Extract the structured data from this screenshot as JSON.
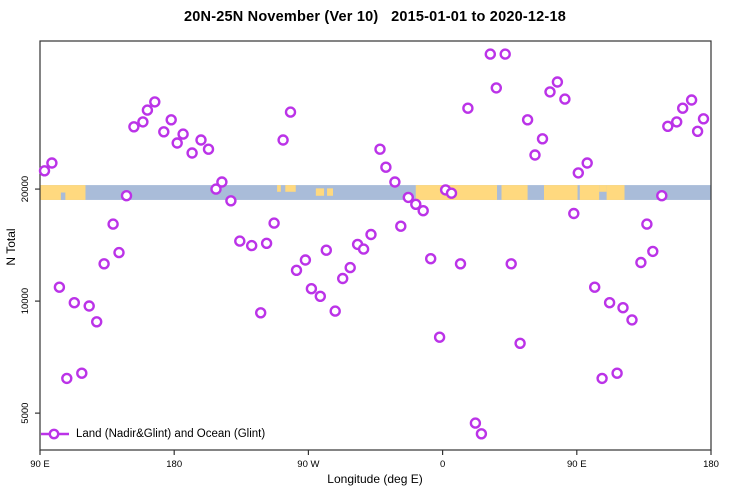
{
  "title": "20N-25N November (Ver 10)   2015-01-01 to 2020-12-18",
  "colors": {
    "marker": "#BB33E8",
    "marker_fill": "#ffffff",
    "land": "#FFD97F",
    "ocean": "#A9BCD9",
    "axis": "#333333",
    "text": "#000000"
  },
  "chart_data": {
    "type": "scatter",
    "title": "20N-25N November (Ver 10)   2015-01-01 to 2020-12-18",
    "xlabel": "Longitude (deg E)",
    "ylabel": "N Total",
    "grid": false,
    "legend": {
      "label": "Land (Nadir&Glint) and Ocean (Glint)",
      "position": "bottom-left",
      "marker": "open-circle-on-line"
    },
    "x_axis": {
      "note": "longitude in deg E, continuing eastward past 180 (wraps around globe)",
      "min": 90,
      "max": 540,
      "ticks": [
        {
          "value": 90,
          "label": "90 E"
        },
        {
          "value": 180,
          "label": "180"
        },
        {
          "value": 270,
          "label": "90 W"
        },
        {
          "value": 360,
          "label": "0"
        },
        {
          "value": 450,
          "label": "90 E"
        },
        {
          "value": 540,
          "label": "180"
        }
      ]
    },
    "y_axis": {
      "scale": "log10",
      "min": 3980,
      "max": 50000,
      "ticks": [
        {
          "value": 20000,
          "label": "20000"
        },
        {
          "value": 10000,
          "label": "10000"
        },
        {
          "value": 5000,
          "label": "5000"
        }
      ]
    },
    "map_strip": {
      "note": "land/ocean strip for the 20N-25N latitude band drawn across the plot near N=20000",
      "value_top": 20500,
      "value_bottom": 18700,
      "land_segments": [
        {
          "from": 90,
          "to": 120.5,
          "cover": "full"
        },
        {
          "from": 249,
          "to": 251.5,
          "cover": "upper"
        },
        {
          "from": 254.5,
          "to": 261.5,
          "cover": "upper"
        },
        {
          "from": 275,
          "to": 280.5,
          "cover": "mid"
        },
        {
          "from": 282.5,
          "to": 286.5,
          "cover": "mid"
        },
        {
          "from": 342,
          "to": 396.5,
          "cover": "full"
        },
        {
          "from": 399.5,
          "to": 417,
          "cover": "full"
        },
        {
          "from": 428,
          "to": 450.5,
          "cover": "full"
        },
        {
          "from": 452,
          "to": 465,
          "cover": "full"
        },
        {
          "from": 465,
          "to": 470,
          "cover": "upper"
        },
        {
          "from": 470,
          "to": 482,
          "cover": "full"
        }
      ],
      "ocean_notches": [
        {
          "from": 104,
          "to": 107,
          "cover": "lower"
        }
      ]
    },
    "series": [
      {
        "name": "Land (Nadir&Glint) and Ocean (Glint)",
        "marker": {
          "shape": "open-circle",
          "radius_px": 4.5,
          "stroke_px": 2.4
        },
        "points": [
          [
            167,
            34300
          ],
          [
            162,
            32600
          ],
          [
            159,
            30300
          ],
          [
            153,
            29400
          ],
          [
            178,
            30700
          ],
          [
            173,
            28500
          ],
          [
            186,
            28100
          ],
          [
            182,
            26600
          ],
          [
            192,
            25000
          ],
          [
            198,
            27100
          ],
          [
            203,
            25600
          ],
          [
            98,
            23500
          ],
          [
            93,
            22400
          ],
          [
            212,
            20900
          ],
          [
            208,
            20000
          ],
          [
            148,
            19200
          ],
          [
            218,
            18600
          ],
          [
            139,
            16100
          ],
          [
            258,
            32200
          ],
          [
            253,
            27100
          ],
          [
            318,
            25600
          ],
          [
            322,
            22900
          ],
          [
            328,
            20900
          ],
          [
            377,
            33000
          ],
          [
            337,
            19000
          ],
          [
            342,
            18200
          ],
          [
            347,
            17500
          ],
          [
            362,
            19900
          ],
          [
            366,
            19500
          ],
          [
            247,
            16200
          ],
          [
            332,
            15900
          ],
          [
            312,
            15100
          ],
          [
            392,
            46100
          ],
          [
            402,
            46100
          ],
          [
            396,
            37400
          ],
          [
            437,
            38800
          ],
          [
            432,
            36500
          ],
          [
            442,
            34900
          ],
          [
            417,
            30700
          ],
          [
            427,
            27300
          ],
          [
            422,
            24700
          ],
          [
            457,
            23500
          ],
          [
            451,
            22100
          ],
          [
            527,
            34700
          ],
          [
            521,
            33000
          ],
          [
            517,
            30300
          ],
          [
            511,
            29500
          ],
          [
            535,
            30900
          ],
          [
            531,
            28600
          ],
          [
            507,
            19200
          ],
          [
            448,
            17200
          ],
          [
            497,
            16100
          ],
          [
            143,
            13500
          ],
          [
            133,
            12600
          ],
          [
            103,
            10900
          ],
          [
            113,
            9900
          ],
          [
            123,
            9700
          ],
          [
            128,
            8800
          ],
          [
            118,
            6400
          ],
          [
            108,
            6200
          ],
          [
            224,
            14500
          ],
          [
            232,
            14100
          ],
          [
            238,
            9300
          ],
          [
            242,
            14300
          ],
          [
            268,
            12900
          ],
          [
            262,
            12100
          ],
          [
            282,
            13700
          ],
          [
            303,
            14200
          ],
          [
            307,
            13800
          ],
          [
            298,
            12300
          ],
          [
            293,
            11500
          ],
          [
            272,
            10800
          ],
          [
            278,
            10300
          ],
          [
            288,
            9400
          ],
          [
            352,
            13000
          ],
          [
            372,
            12600
          ],
          [
            358,
            8000
          ],
          [
            382,
            4700
          ],
          [
            386,
            4400
          ],
          [
            406,
            12600
          ],
          [
            501,
            13600
          ],
          [
            493,
            12700
          ],
          [
            462,
            10900
          ],
          [
            472,
            9900
          ],
          [
            481,
            9600
          ],
          [
            487,
            8900
          ],
          [
            412,
            7700
          ],
          [
            477,
            6400
          ],
          [
            467,
            6200
          ]
        ]
      }
    ]
  }
}
